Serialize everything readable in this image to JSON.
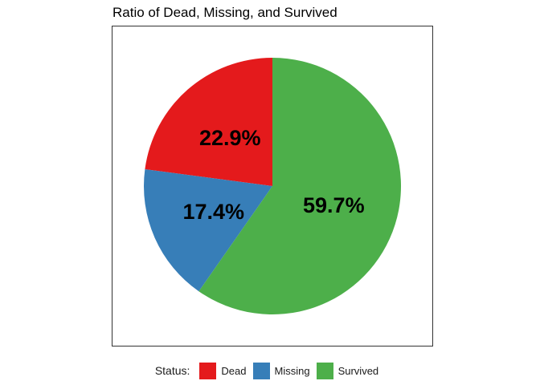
{
  "chart_data": {
    "type": "pie",
    "title": "Ratio of Dead, Missing, and Survived",
    "legend": {
      "title": "Status:",
      "placement": "bottom"
    },
    "categories": [
      "Dead",
      "Missing",
      "Survived"
    ],
    "values": [
      22.9,
      17.4,
      59.7
    ],
    "value_labels": [
      "22.9%",
      "17.4%",
      "59.7%"
    ],
    "colors": [
      "#e41a1c",
      "#377eb8",
      "#4daf4a"
    ],
    "order": "counter-clockwise from 12 o'clock"
  }
}
